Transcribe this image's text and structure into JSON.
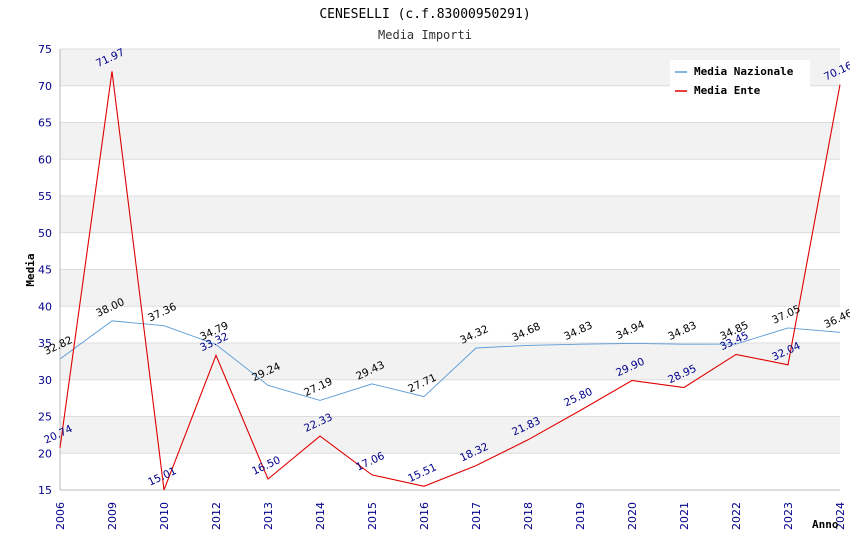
{
  "chart_data": {
    "type": "line",
    "title": "CENESELLI (c.f.83000950291)",
    "subtitle": "Media Importi",
    "xlabel": "Anno",
    "ylabel": "Media",
    "ylim": [
      15,
      75
    ],
    "yticks": [
      "15",
      "20",
      "25",
      "30",
      "35",
      "40",
      "45",
      "50",
      "55",
      "60",
      "65",
      "70",
      "75"
    ],
    "categories": [
      "2006",
      "2009",
      "2010",
      "2012",
      "2013",
      "2014",
      "2015",
      "2016",
      "2017",
      "2018",
      "2019",
      "2020",
      "2021",
      "2022",
      "2023",
      "2024"
    ],
    "legend_position": "top-right",
    "grid": true,
    "series": [
      {
        "name": "Media Nazionale",
        "color": "#5b9bd5",
        "values": [
          32.82,
          38.0,
          37.36,
          34.79,
          29.24,
          27.19,
          29.43,
          27.71,
          34.32,
          34.68,
          34.83,
          34.94,
          34.83,
          34.85,
          37.05,
          36.46
        ],
        "labels": [
          "32.82",
          "38.00",
          "37.36",
          "34.79",
          "29.24",
          "27.19",
          "29.43",
          "27.71",
          "34.32",
          "34.68",
          "34.83",
          "34.94",
          "34.83",
          "34.85",
          "37.05",
          "36.46"
        ]
      },
      {
        "name": "Media Ente",
        "color": "#e00000",
        "values": [
          20.74,
          71.97,
          15.01,
          33.32,
          16.5,
          22.33,
          17.06,
          15.51,
          18.32,
          21.83,
          25.8,
          29.9,
          28.95,
          33.45,
          32.04,
          70.16
        ],
        "labels": [
          "20.74",
          "71.97",
          "15.01",
          "33.32",
          "16.50",
          "22.33",
          "17.06",
          "15.51",
          "18.32",
          "21.83",
          "25.80",
          "29.90",
          "28.95",
          "33.45",
          "32.04",
          "70.16"
        ]
      }
    ]
  }
}
